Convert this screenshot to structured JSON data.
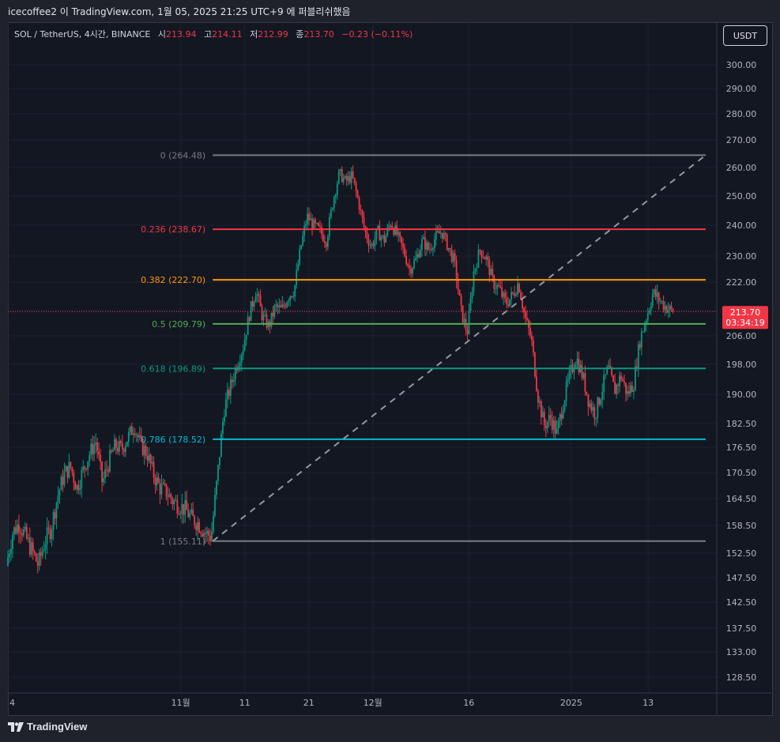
{
  "snapshot_text": "icecoffee2 이 TradingView.com, 1월 05, 2025 21:25 UTC+9 에 퍼블리쉬했음",
  "legend": {
    "symbol": "SOL / TetherUS, 4시간, BINANCE",
    "open_label": "시",
    "open": "213.94",
    "high_label": "고",
    "high": "214.11",
    "low_label": "저",
    "low": "212.99",
    "close_label": "종",
    "close": "213.70",
    "change": "−0.23 (−0.11%)"
  },
  "currency": "USDT",
  "branding": "TradingView",
  "chart_data": {
    "type": "candlestick",
    "symbol": "SOL/USDT",
    "interval": "4h",
    "exchange": "BINANCE",
    "y_ticks": [
      "300.00",
      "290.00",
      "280.00",
      "270.00",
      "260.00",
      "250.00",
      "240.00",
      "230.00",
      "222.00",
      "214.00",
      "206.00",
      "198.00",
      "190.00",
      "182.50",
      "176.50",
      "170.50",
      "164.50",
      "158.50",
      "152.50",
      "147.50",
      "142.50",
      "137.50",
      "133.00",
      "128.50"
    ],
    "x_labels": [
      {
        "label": "4",
        "t": 0
      },
      {
        "label": "11월",
        "t": 27
      },
      {
        "label": "11",
        "t": 37
      },
      {
        "label": "21",
        "t": 47
      },
      {
        "label": "12월",
        "t": 57
      },
      {
        "label": "16",
        "t": 72
      },
      {
        "label": "2025",
        "t": 88
      },
      {
        "label": "13",
        "t": 100
      }
    ],
    "x_range": [
      0,
      109
    ],
    "last_price": {
      "value": 213.7,
      "label": "213.70",
      "countdown": "03:34:19",
      "color": "#f23645"
    },
    "fibonacci": {
      "t_start": 32,
      "t_end": 109,
      "levels": [
        {
          "ratio": "0",
          "price": 264.48,
          "label": "0 (264.48)",
          "color": "#787b86"
        },
        {
          "ratio": "0.236",
          "price": 238.67,
          "label": "0.236 (238.67)",
          "color": "#f23645"
        },
        {
          "ratio": "0.382",
          "price": 222.7,
          "label": "0.382 (222.70)",
          "color": "#ff9800"
        },
        {
          "ratio": "0.5",
          "price": 209.79,
          "label": "0.5 (209.79)",
          "color": "#4caf50"
        },
        {
          "ratio": "0.618",
          "price": 196.89,
          "label": "0.618 (196.89)",
          "color": "#089981"
        },
        {
          "ratio": "0.786",
          "price": 178.52,
          "label": "0.786 (178.52)",
          "color": "#00bcd4"
        },
        {
          "ratio": "1",
          "price": 155.11,
          "label": "1 (155.11)",
          "color": "#787b86"
        }
      ],
      "trend_line": {
        "from": {
          "t": 32,
          "price": 155.11
        },
        "to": {
          "t": 109,
          "price": 264.48
        },
        "color": "#9598a1"
      }
    },
    "price_path": [
      {
        "t": 0,
        "p": 150
      },
      {
        "t": 1,
        "p": 157
      },
      {
        "t": 2,
        "p": 159
      },
      {
        "t": 3,
        "p": 156
      },
      {
        "t": 4,
        "p": 153
      },
      {
        "t": 5,
        "p": 150
      },
      {
        "t": 6,
        "p": 155
      },
      {
        "t": 7,
        "p": 158
      },
      {
        "t": 8,
        "p": 165
      },
      {
        "t": 9,
        "p": 170
      },
      {
        "t": 10,
        "p": 172
      },
      {
        "t": 11,
        "p": 167
      },
      {
        "t": 12,
        "p": 171
      },
      {
        "t": 13,
        "p": 175
      },
      {
        "t": 14,
        "p": 178
      },
      {
        "t": 15,
        "p": 168
      },
      {
        "t": 16,
        "p": 173
      },
      {
        "t": 17,
        "p": 177
      },
      {
        "t": 18,
        "p": 176
      },
      {
        "t": 19,
        "p": 179
      },
      {
        "t": 20,
        "p": 182
      },
      {
        "t": 21,
        "p": 177
      },
      {
        "t": 22,
        "p": 175
      },
      {
        "t": 23,
        "p": 170
      },
      {
        "t": 24,
        "p": 167
      },
      {
        "t": 25,
        "p": 166
      },
      {
        "t": 26,
        "p": 164
      },
      {
        "t": 27,
        "p": 163
      },
      {
        "t": 28,
        "p": 162
      },
      {
        "t": 29,
        "p": 160
      },
      {
        "t": 30,
        "p": 159
      },
      {
        "t": 31,
        "p": 157
      },
      {
        "t": 32,
        "p": 156
      },
      {
        "t": 33,
        "p": 170
      },
      {
        "t": 34,
        "p": 186
      },
      {
        "t": 35,
        "p": 192
      },
      {
        "t": 36,
        "p": 198
      },
      {
        "t": 37,
        "p": 203
      },
      {
        "t": 38,
        "p": 213
      },
      {
        "t": 39,
        "p": 220
      },
      {
        "t": 40,
        "p": 212
      },
      {
        "t": 41,
        "p": 209
      },
      {
        "t": 42,
        "p": 215
      },
      {
        "t": 43,
        "p": 214
      },
      {
        "t": 44,
        "p": 218
      },
      {
        "t": 45,
        "p": 220
      },
      {
        "t": 46,
        "p": 233
      },
      {
        "t": 47,
        "p": 243
      },
      {
        "t": 48,
        "p": 240
      },
      {
        "t": 49,
        "p": 238
      },
      {
        "t": 50,
        "p": 235
      },
      {
        "t": 51,
        "p": 248
      },
      {
        "t": 52,
        "p": 258
      },
      {
        "t": 53,
        "p": 255
      },
      {
        "t": 54,
        "p": 257
      },
      {
        "t": 55,
        "p": 248
      },
      {
        "t": 56,
        "p": 238
      },
      {
        "t": 57,
        "p": 233
      },
      {
        "t": 58,
        "p": 238
      },
      {
        "t": 59,
        "p": 235
      },
      {
        "t": 60,
        "p": 241
      },
      {
        "t": 61,
        "p": 237
      },
      {
        "t": 62,
        "p": 232
      },
      {
        "t": 63,
        "p": 226
      },
      {
        "t": 64,
        "p": 229
      },
      {
        "t": 65,
        "p": 235
      },
      {
        "t": 66,
        "p": 232
      },
      {
        "t": 67,
        "p": 236
      },
      {
        "t": 68,
        "p": 238
      },
      {
        "t": 69,
        "p": 233
      },
      {
        "t": 70,
        "p": 228
      },
      {
        "t": 71,
        "p": 214
      },
      {
        "t": 72,
        "p": 207
      },
      {
        "t": 73,
        "p": 225
      },
      {
        "t": 74,
        "p": 232
      },
      {
        "t": 75,
        "p": 229
      },
      {
        "t": 76,
        "p": 222
      },
      {
        "t": 77,
        "p": 220
      },
      {
        "t": 78,
        "p": 216
      },
      {
        "t": 79,
        "p": 218
      },
      {
        "t": 80,
        "p": 222
      },
      {
        "t": 81,
        "p": 212
      },
      {
        "t": 82,
        "p": 205
      },
      {
        "t": 83,
        "p": 190
      },
      {
        "t": 84,
        "p": 182
      },
      {
        "t": 85,
        "p": 184
      },
      {
        "t": 86,
        "p": 180
      },
      {
        "t": 87,
        "p": 188
      },
      {
        "t": 88,
        "p": 195
      },
      {
        "t": 89,
        "p": 200
      },
      {
        "t": 90,
        "p": 195
      },
      {
        "t": 91,
        "p": 188
      },
      {
        "t": 92,
        "p": 185
      },
      {
        "t": 93,
        "p": 191
      },
      {
        "t": 94,
        "p": 197
      },
      {
        "t": 95,
        "p": 191
      },
      {
        "t": 96,
        "p": 195
      },
      {
        "t": 97,
        "p": 190
      },
      {
        "t": 98,
        "p": 193
      },
      {
        "t": 99,
        "p": 205
      },
      {
        "t": 100,
        "p": 212
      },
      {
        "t": 101,
        "p": 219
      },
      {
        "t": 102,
        "p": 217
      },
      {
        "t": 103,
        "p": 215
      },
      {
        "t": 104,
        "p": 213.7
      }
    ]
  }
}
